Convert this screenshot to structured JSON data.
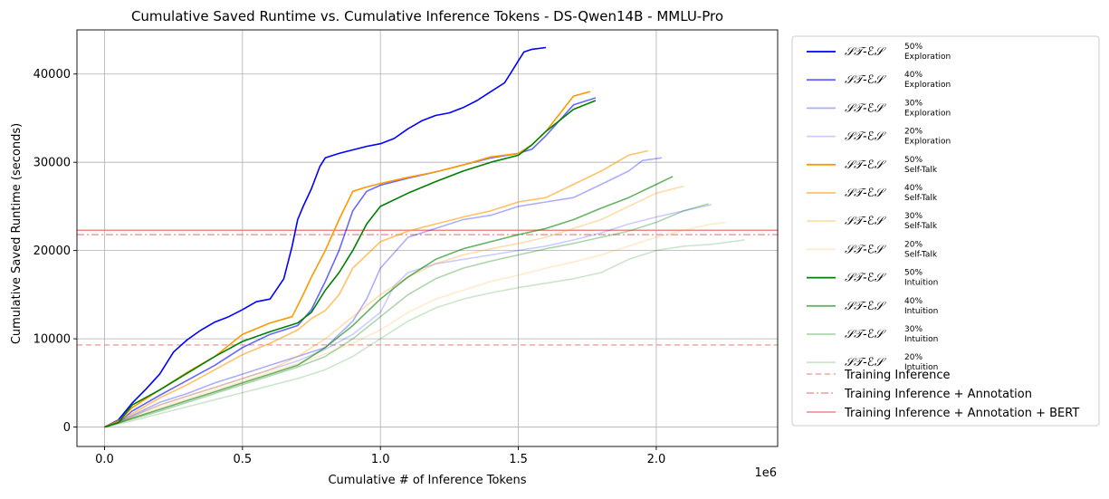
{
  "chart_data": {
    "type": "line",
    "title": "Cumulative Saved Runtime vs. Cumulative Inference Tokens - DS-Qwen14B - MMLU-Pro",
    "xlabel": "Cumulative # of Inference Tokens",
    "ylabel": "Cumulative Saved Runtime (seconds)",
    "x_offset_label": "1e6",
    "xlim": [
      -0.1,
      2.44
    ],
    "ylim": [
      -2200,
      45000
    ],
    "x_ticks": [
      0.0,
      0.5,
      1.0,
      1.5,
      2.0
    ],
    "x_tick_labels": [
      "0.0",
      "0.5",
      "1.0",
      "1.5",
      "2.0"
    ],
    "y_ticks": [
      0,
      10000,
      20000,
      30000,
      40000
    ],
    "y_tick_labels": [
      "0",
      "10000",
      "20000",
      "30000",
      "40000"
    ],
    "grid": true,
    "legend_position": "outside-right",
    "series": [
      {
        "name": "ST-ES 50% Exploration",
        "legend": {
          "main": "𝒮𝒯-ℰ𝒮",
          "sup": "50%",
          "sub": "Exploration"
        },
        "color": "#0000ff",
        "opacity": 1.0,
        "style": "solid",
        "x": [
          0,
          0.05,
          0.1,
          0.15,
          0.2,
          0.25,
          0.3,
          0.35,
          0.4,
          0.45,
          0.5,
          0.55,
          0.6,
          0.65,
          0.68,
          0.7,
          0.72,
          0.75,
          0.78,
          0.8,
          0.85,
          0.9,
          0.95,
          1.0,
          1.05,
          1.1,
          1.15,
          1.2,
          1.25,
          1.3,
          1.35,
          1.4,
          1.45,
          1.48,
          1.5,
          1.52,
          1.55,
          1.6
        ],
        "y": [
          0,
          800,
          2700,
          4300,
          6000,
          8500,
          9900,
          11000,
          11900,
          12500,
          13300,
          14200,
          14500,
          16800,
          20500,
          23500,
          25000,
          27000,
          29500,
          30500,
          31000,
          31400,
          31800,
          32100,
          32700,
          33800,
          34700,
          35300,
          35600,
          36200,
          37000,
          38000,
          39000,
          40500,
          41500,
          42500,
          42800,
          43000
        ]
      },
      {
        "name": "ST-ES 40% Exploration",
        "legend": {
          "main": "𝒮𝒯-ℰ𝒮",
          "sup": "40%",
          "sub": "Exploration"
        },
        "color": "#0000ff",
        "opacity": 0.6,
        "style": "solid",
        "x": [
          0,
          0.05,
          0.1,
          0.2,
          0.3,
          0.4,
          0.5,
          0.6,
          0.7,
          0.75,
          0.8,
          0.85,
          0.9,
          0.95,
          1.0,
          1.1,
          1.2,
          1.3,
          1.4,
          1.5,
          1.55,
          1.6,
          1.7,
          1.78
        ],
        "y": [
          0,
          500,
          1800,
          3600,
          5300,
          7000,
          9000,
          10500,
          11500,
          13300,
          16500,
          20000,
          24500,
          26700,
          27400,
          28200,
          28900,
          29700,
          30500,
          31000,
          31500,
          33000,
          36500,
          37300
        ]
      },
      {
        "name": "ST-ES 30% Exploration",
        "legend": {
          "main": "𝒮𝒯-ℰ𝒮",
          "sup": "30%",
          "sub": "Exploration"
        },
        "color": "#0000ff",
        "opacity": 0.32,
        "style": "solid",
        "x": [
          0,
          0.1,
          0.2,
          0.3,
          0.4,
          0.5,
          0.6,
          0.7,
          0.8,
          0.85,
          0.9,
          0.95,
          1.0,
          1.1,
          1.2,
          1.3,
          1.4,
          1.5,
          1.6,
          1.7,
          1.8,
          1.9,
          1.95,
          2.02
        ],
        "y": [
          0,
          1300,
          2800,
          3800,
          5000,
          6000,
          7000,
          8000,
          9000,
          10500,
          12000,
          14500,
          18000,
          21500,
          22500,
          23500,
          24000,
          25000,
          25500,
          26000,
          27500,
          29000,
          30200,
          30500
        ]
      },
      {
        "name": "ST-ES 20% Exploration",
        "legend": {
          "main": "𝒮𝒯-ℰ𝒮",
          "sup": "20%",
          "sub": "Exploration"
        },
        "color": "#0000ff",
        "opacity": 0.2,
        "style": "solid",
        "x": [
          0,
          0.1,
          0.2,
          0.3,
          0.4,
          0.5,
          0.6,
          0.7,
          0.8,
          0.9,
          1.0,
          1.05,
          1.1,
          1.2,
          1.3,
          1.4,
          1.5,
          1.6,
          1.7,
          1.8,
          1.9,
          2.0,
          2.1,
          2.2
        ],
        "y": [
          0,
          1200,
          2500,
          3500,
          4500,
          5500,
          6500,
          7500,
          8800,
          10500,
          13000,
          16000,
          17500,
          18500,
          19000,
          19500,
          20000,
          20500,
          21200,
          22000,
          23000,
          23800,
          24500,
          25200
        ]
      },
      {
        "name": "ST-ES 50% Self-Talk",
        "legend": {
          "main": "𝒮𝒯-ℰ𝒮",
          "sup": "50%",
          "sub": "Self-Talk"
        },
        "color": "#ff9900",
        "opacity": 1.0,
        "style": "solid",
        "x": [
          0,
          0.05,
          0.1,
          0.2,
          0.3,
          0.4,
          0.5,
          0.6,
          0.68,
          0.72,
          0.75,
          0.8,
          0.85,
          0.9,
          0.95,
          1.0,
          1.1,
          1.2,
          1.3,
          1.4,
          1.5,
          1.55,
          1.6,
          1.7,
          1.76
        ],
        "y": [
          0,
          600,
          2200,
          4200,
          6200,
          8000,
          10500,
          11800,
          12500,
          15000,
          17000,
          20000,
          23500,
          26700,
          27200,
          27600,
          28300,
          28900,
          29700,
          30600,
          31000,
          32000,
          33500,
          37500,
          38000
        ]
      },
      {
        "name": "ST-ES 40% Self-Talk",
        "legend": {
          "main": "𝒮𝒯-ℰ𝒮",
          "sup": "40%",
          "sub": "Self-Talk"
        },
        "color": "#ff9900",
        "opacity": 0.6,
        "style": "solid",
        "x": [
          0,
          0.1,
          0.2,
          0.3,
          0.4,
          0.5,
          0.6,
          0.7,
          0.75,
          0.8,
          0.85,
          0.9,
          1.0,
          1.1,
          1.2,
          1.3,
          1.4,
          1.5,
          1.6,
          1.7,
          1.8,
          1.9,
          1.97
        ],
        "y": [
          0,
          1500,
          3300,
          4800,
          6500,
          8200,
          9500,
          11000,
          12300,
          13200,
          15000,
          18000,
          21000,
          22200,
          23000,
          23800,
          24500,
          25500,
          26000,
          27500,
          29000,
          30800,
          31300
        ]
      },
      {
        "name": "ST-ES 30% Self-Talk",
        "legend": {
          "main": "𝒮𝒯-ℰ𝒮",
          "sup": "30%",
          "sub": "Self-Talk"
        },
        "color": "#ff9900",
        "opacity": 0.32,
        "style": "solid",
        "x": [
          0,
          0.1,
          0.2,
          0.3,
          0.4,
          0.5,
          0.6,
          0.7,
          0.8,
          0.9,
          1.0,
          1.1,
          1.2,
          1.3,
          1.4,
          1.5,
          1.6,
          1.7,
          1.8,
          1.9,
          2.0,
          2.1
        ],
        "y": [
          0,
          1200,
          2500,
          3500,
          4500,
          5500,
          6500,
          8000,
          10000,
          12500,
          15000,
          17000,
          18500,
          19500,
          20200,
          20800,
          21500,
          22500,
          23500,
          25000,
          26500,
          27300
        ]
      },
      {
        "name": "ST-ES 20% Self-Talk",
        "legend": {
          "main": "𝒮𝒯-ℰ𝒮",
          "sup": "20%",
          "sub": "Self-Talk"
        },
        "color": "#ff9900",
        "opacity": 0.2,
        "style": "solid",
        "x": [
          0,
          0.1,
          0.2,
          0.3,
          0.4,
          0.5,
          0.6,
          0.7,
          0.8,
          0.9,
          1.0,
          1.1,
          1.2,
          1.3,
          1.4,
          1.5,
          1.6,
          1.7,
          1.8,
          1.9,
          2.0,
          2.1,
          2.2,
          2.25
        ],
        "y": [
          0,
          1000,
          2200,
          3200,
          4200,
          5200,
          6200,
          7200,
          8300,
          9500,
          11000,
          13000,
          14500,
          15500,
          16500,
          17200,
          18000,
          18700,
          19500,
          20500,
          21500,
          22300,
          23000,
          23200
        ]
      },
      {
        "name": "ST-ES 50% Intuition",
        "legend": {
          "main": "𝒮𝒯-ℰ𝒮",
          "sup": "50%",
          "sub": "Intuition"
        },
        "color": "#008000",
        "opacity": 1.0,
        "style": "solid",
        "x": [
          0,
          0.05,
          0.1,
          0.2,
          0.3,
          0.4,
          0.5,
          0.6,
          0.7,
          0.75,
          0.8,
          0.85,
          0.9,
          0.95,
          1.0,
          1.1,
          1.2,
          1.3,
          1.4,
          1.5,
          1.55,
          1.6,
          1.7,
          1.78
        ],
        "y": [
          0,
          500,
          2500,
          4200,
          6100,
          8000,
          9700,
          10800,
          11800,
          13000,
          15500,
          17500,
          20000,
          23000,
          25000,
          26500,
          27800,
          29000,
          30000,
          30800,
          32000,
          33500,
          36000,
          37000
        ]
      },
      {
        "name": "ST-ES 40% Intuition",
        "legend": {
          "main": "𝒮𝒯-ℰ𝒮",
          "sup": "40%",
          "sub": "Intuition"
        },
        "color": "#008000",
        "opacity": 0.6,
        "style": "solid",
        "x": [
          0,
          0.1,
          0.2,
          0.3,
          0.4,
          0.5,
          0.6,
          0.7,
          0.8,
          0.9,
          1.0,
          1.1,
          1.2,
          1.3,
          1.4,
          1.5,
          1.6,
          1.7,
          1.8,
          1.9,
          2.0,
          2.06
        ],
        "y": [
          0,
          1000,
          2000,
          3000,
          4000,
          5000,
          6000,
          7000,
          9000,
          11500,
          14500,
          17000,
          19000,
          20200,
          21000,
          21800,
          22500,
          23500,
          24800,
          26000,
          27500,
          28400
        ]
      },
      {
        "name": "ST-ES 30% Intuition",
        "legend": {
          "main": "𝒮𝒯-ℰ𝒮",
          "sup": "30%",
          "sub": "Intuition"
        },
        "color": "#008000",
        "opacity": 0.32,
        "style": "solid",
        "x": [
          0,
          0.1,
          0.2,
          0.3,
          0.4,
          0.5,
          0.6,
          0.7,
          0.8,
          0.9,
          1.0,
          1.1,
          1.2,
          1.3,
          1.4,
          1.5,
          1.6,
          1.7,
          1.8,
          1.9,
          2.0,
          2.1,
          2.19
        ],
        "y": [
          0,
          900,
          1800,
          2800,
          3800,
          4800,
          5800,
          6800,
          8000,
          10000,
          12500,
          15000,
          16800,
          18000,
          18800,
          19500,
          20200,
          20800,
          21500,
          22200,
          23200,
          24500,
          25300
        ]
      },
      {
        "name": "ST-ES 20% Intuition",
        "legend": {
          "main": "𝒮𝒯-ℰ𝒮",
          "sup": "20%",
          "sub": "Intuition"
        },
        "color": "#008000",
        "opacity": 0.2,
        "style": "solid",
        "x": [
          0,
          0.1,
          0.2,
          0.3,
          0.4,
          0.5,
          0.6,
          0.7,
          0.8,
          0.9,
          1.0,
          1.1,
          1.2,
          1.3,
          1.4,
          1.5,
          1.6,
          1.7,
          1.8,
          1.9,
          2.0,
          2.1,
          2.2,
          2.32
        ],
        "y": [
          0,
          700,
          1500,
          2300,
          3100,
          3900,
          4700,
          5500,
          6500,
          8000,
          10000,
          12000,
          13500,
          14500,
          15200,
          15800,
          16300,
          16800,
          17500,
          19000,
          20000,
          20500,
          20700,
          21200
        ]
      }
    ],
    "hlines": [
      {
        "name": "Training Inference",
        "y": 9300,
        "color": "#f08080",
        "opacity": 0.7,
        "style": "dashed"
      },
      {
        "name": "Training Inference + Annotation",
        "y": 21800,
        "color": "#f08080",
        "opacity": 0.8,
        "style": "dashdot"
      },
      {
        "name": "Training Inference + Annotation + BERT",
        "y": 22300,
        "color": "#f08080",
        "opacity": 0.95,
        "style": "solid"
      }
    ]
  }
}
